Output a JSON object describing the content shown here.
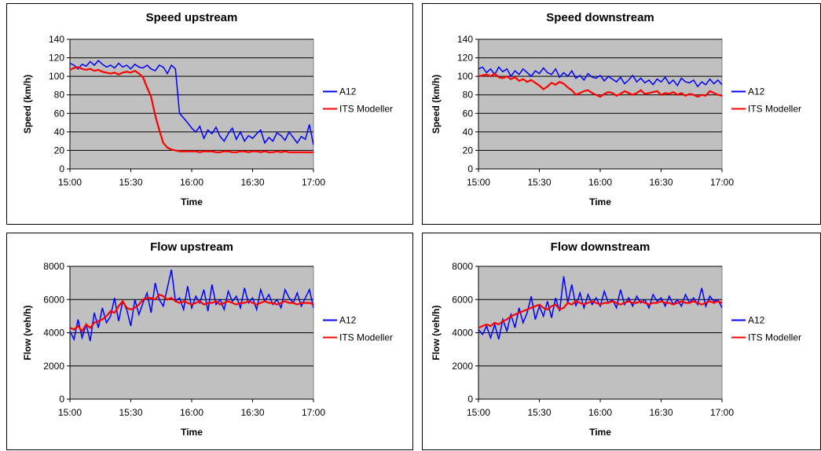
{
  "colors": {
    "plot_bg": "#c0c0c0",
    "a12": "#0000ff",
    "its": "#ff0000",
    "grid": "#000000"
  },
  "chart_data": [
    {
      "type": "line",
      "title": "Speed upstream",
      "xlabel": "Time",
      "ylabel": "Speed (km/h)",
      "x_ticks": [
        "15:00",
        "15:30",
        "16:00",
        "16:30",
        "17:00"
      ],
      "y_ticks": [
        "0",
        "20",
        "40",
        "60",
        "80",
        "100",
        "120",
        "140"
      ],
      "ylim": [
        0,
        140
      ],
      "xlim_minutes": [
        0,
        120
      ],
      "legend": "right",
      "series": [
        {
          "name": "A12",
          "color": "#0000ff",
          "x": [
            0,
            2,
            4,
            6,
            8,
            10,
            12,
            14,
            16,
            18,
            20,
            22,
            24,
            26,
            28,
            30,
            32,
            34,
            36,
            38,
            40,
            42,
            44,
            46,
            48,
            50,
            52,
            54,
            56,
            58,
            60,
            62,
            64,
            66,
            68,
            70,
            72,
            74,
            76,
            78,
            80,
            82,
            84,
            86,
            88,
            90,
            92,
            94,
            96,
            98,
            100,
            102,
            104,
            106,
            108,
            110,
            112,
            114,
            116,
            118,
            120
          ],
          "y": [
            114,
            112,
            108,
            113,
            111,
            116,
            112,
            117,
            113,
            110,
            112,
            109,
            114,
            110,
            112,
            108,
            113,
            110,
            109,
            112,
            108,
            106,
            112,
            110,
            103,
            112,
            108,
            60,
            55,
            50,
            44,
            40,
            46,
            33,
            42,
            38,
            45,
            35,
            30,
            38,
            44,
            32,
            40,
            30,
            36,
            33,
            38,
            42,
            28,
            34,
            30,
            39,
            36,
            31,
            40,
            34,
            28,
            35,
            32,
            48,
            26
          ]
        },
        {
          "name": "ITS Modeller",
          "color": "#ff0000",
          "x": [
            0,
            2,
            4,
            6,
            8,
            10,
            12,
            14,
            16,
            18,
            20,
            22,
            24,
            26,
            28,
            30,
            32,
            34,
            36,
            38,
            40,
            42,
            44,
            46,
            48,
            50,
            52,
            54,
            56,
            58,
            60,
            62,
            64,
            66,
            68,
            70,
            72,
            74,
            76,
            78,
            80,
            82,
            84,
            86,
            88,
            90,
            92,
            94,
            96,
            98,
            100,
            102,
            104,
            106,
            108,
            110,
            112,
            114,
            116,
            118,
            120
          ],
          "y": [
            107,
            109,
            110,
            108,
            107,
            108,
            106,
            107,
            105,
            104,
            103,
            104,
            102,
            104,
            105,
            104,
            106,
            103,
            99,
            88,
            78,
            58,
            42,
            28,
            23,
            21,
            20,
            19,
            19,
            19,
            19,
            19,
            18,
            19,
            19,
            19,
            18,
            18,
            19,
            19,
            18,
            18,
            19,
            19,
            18,
            19,
            19,
            18,
            19,
            18,
            18,
            19,
            18,
            19,
            18,
            18,
            18,
            18,
            18,
            18,
            18
          ]
        }
      ]
    },
    {
      "type": "line",
      "title": "Speed downstream",
      "xlabel": "Time",
      "ylabel": "Speed (km/h)",
      "x_ticks": [
        "15:00",
        "15:30",
        "16:00",
        "16:30",
        "17:00"
      ],
      "y_ticks": [
        "0",
        "20",
        "40",
        "60",
        "80",
        "100",
        "120",
        "140"
      ],
      "ylim": [
        0,
        140
      ],
      "xlim_minutes": [
        0,
        120
      ],
      "legend": "right",
      "series": [
        {
          "name": "A12",
          "color": "#0000ff",
          "x": [
            0,
            2,
            4,
            6,
            8,
            10,
            12,
            14,
            16,
            18,
            20,
            22,
            24,
            26,
            28,
            30,
            32,
            34,
            36,
            38,
            40,
            42,
            44,
            46,
            48,
            50,
            52,
            54,
            56,
            58,
            60,
            62,
            64,
            66,
            68,
            70,
            72,
            74,
            76,
            78,
            80,
            82,
            84,
            86,
            88,
            90,
            92,
            94,
            96,
            98,
            100,
            102,
            104,
            106,
            108,
            110,
            112,
            114,
            116,
            118,
            120
          ],
          "y": [
            108,
            110,
            104,
            108,
            102,
            110,
            105,
            108,
            100,
            106,
            102,
            108,
            104,
            100,
            106,
            103,
            109,
            104,
            102,
            108,
            99,
            104,
            100,
            106,
            98,
            101,
            96,
            103,
            99,
            98,
            101,
            95,
            100,
            97,
            94,
            99,
            92,
            96,
            101,
            94,
            98,
            93,
            96,
            91,
            97,
            94,
            99,
            92,
            96,
            90,
            98,
            94,
            93,
            96,
            89,
            94,
            91,
            97,
            92,
            96,
            91
          ]
        },
        {
          "name": "ITS Modeller",
          "color": "#ff0000",
          "x": [
            0,
            2,
            4,
            6,
            8,
            10,
            12,
            14,
            16,
            18,
            20,
            22,
            24,
            26,
            28,
            30,
            32,
            34,
            36,
            38,
            40,
            42,
            44,
            46,
            48,
            50,
            52,
            54,
            56,
            58,
            60,
            62,
            64,
            66,
            68,
            70,
            72,
            74,
            76,
            78,
            80,
            82,
            84,
            86,
            88,
            90,
            92,
            94,
            96,
            98,
            100,
            102,
            104,
            106,
            108,
            110,
            112,
            114,
            116,
            118,
            120
          ],
          "y": [
            100,
            101,
            102,
            100,
            103,
            99,
            98,
            100,
            97,
            99,
            95,
            97,
            94,
            96,
            93,
            90,
            86,
            89,
            93,
            91,
            94,
            92,
            88,
            85,
            80,
            82,
            84,
            85,
            82,
            80,
            78,
            81,
            83,
            82,
            79,
            81,
            84,
            82,
            80,
            82,
            85,
            81,
            82,
            83,
            84,
            80,
            82,
            81,
            83,
            80,
            82,
            79,
            81,
            80,
            78,
            80,
            79,
            84,
            82,
            80,
            79
          ]
        }
      ]
    },
    {
      "type": "line",
      "title": "Flow upstream",
      "xlabel": "Time",
      "ylabel": "Flow (veh/h)",
      "x_ticks": [
        "15:00",
        "15:30",
        "16:00",
        "16:30",
        "17:00"
      ],
      "y_ticks": [
        "0",
        "2000",
        "4000",
        "6000",
        "8000"
      ],
      "ylim": [
        0,
        8000
      ],
      "xlim_minutes": [
        0,
        120
      ],
      "legend": "right",
      "series": [
        {
          "name": "A12",
          "color": "#0000ff",
          "x": [
            0,
            2,
            4,
            6,
            8,
            10,
            12,
            14,
            16,
            18,
            20,
            22,
            24,
            26,
            28,
            30,
            32,
            34,
            36,
            38,
            40,
            42,
            44,
            46,
            48,
            50,
            52,
            54,
            56,
            58,
            60,
            62,
            64,
            66,
            68,
            70,
            72,
            74,
            76,
            78,
            80,
            82,
            84,
            86,
            88,
            90,
            92,
            94,
            96,
            98,
            100,
            102,
            104,
            106,
            108,
            110,
            112,
            114,
            116,
            118,
            120
          ],
          "y": [
            4100,
            3600,
            4800,
            3700,
            4500,
            3500,
            5200,
            4300,
            5500,
            4600,
            5000,
            6100,
            4700,
            5900,
            5400,
            4400,
            6000,
            5100,
            5800,
            6400,
            5200,
            7000,
            6000,
            5600,
            6700,
            7800,
            5900,
            6100,
            5400,
            6800,
            5500,
            6200,
            5800,
            6600,
            5300,
            6900,
            5700,
            6000,
            5400,
            6500,
            5900,
            6200,
            5500,
            6700,
            5800,
            6100,
            5400,
            6600,
            5900,
            6300,
            5700,
            6000,
            5500,
            6600,
            6100,
            5800,
            6400,
            5600,
            6100,
            6600,
            5500
          ]
        },
        {
          "name": "ITS Modeller",
          "color": "#ff0000",
          "x": [
            0,
            2,
            4,
            6,
            8,
            10,
            12,
            14,
            16,
            18,
            20,
            22,
            24,
            26,
            28,
            30,
            32,
            34,
            36,
            38,
            40,
            42,
            44,
            46,
            48,
            50,
            52,
            54,
            56,
            58,
            60,
            62,
            64,
            66,
            68,
            70,
            72,
            74,
            76,
            78,
            80,
            82,
            84,
            86,
            88,
            90,
            92,
            94,
            96,
            98,
            100,
            102,
            104,
            106,
            108,
            110,
            112,
            114,
            116,
            118,
            120
          ],
          "y": [
            4300,
            4200,
            4400,
            4100,
            4500,
            4300,
            4600,
            4700,
            4800,
            5000,
            5300,
            5200,
            5600,
            5900,
            5500,
            5400,
            5500,
            5700,
            6000,
            6100,
            6100,
            6000,
            6300,
            6200,
            6000,
            6100,
            5900,
            5800,
            5900,
            5800,
            5700,
            5800,
            5900,
            5700,
            5800,
            5800,
            5900,
            5700,
            5800,
            5900,
            5800,
            5700,
            5800,
            5800,
            5900,
            5800,
            5700,
            5800,
            5900,
            5800,
            5800,
            5700,
            5800,
            5900,
            5800,
            5800,
            5700,
            5800,
            5800,
            5800,
            5700
          ]
        }
      ]
    },
    {
      "type": "line",
      "title": "Flow downstream",
      "xlabel": "Time",
      "ylabel": "Flow (veh/h)",
      "x_ticks": [
        "15:00",
        "15:30",
        "16:00",
        "16:30",
        "17:00"
      ],
      "y_ticks": [
        "0",
        "2000",
        "4000",
        "6000",
        "8000"
      ],
      "ylim": [
        0,
        8000
      ],
      "xlim_minutes": [
        0,
        120
      ],
      "legend": "right",
      "series": [
        {
          "name": "A12",
          "color": "#0000ff",
          "x": [
            0,
            2,
            4,
            6,
            8,
            10,
            12,
            14,
            16,
            18,
            20,
            22,
            24,
            26,
            28,
            30,
            32,
            34,
            36,
            38,
            40,
            42,
            44,
            46,
            48,
            50,
            52,
            54,
            56,
            58,
            60,
            62,
            64,
            66,
            68,
            70,
            72,
            74,
            76,
            78,
            80,
            82,
            84,
            86,
            88,
            90,
            92,
            94,
            96,
            98,
            100,
            102,
            104,
            106,
            108,
            110,
            112,
            114,
            116,
            118,
            120
          ],
          "y": [
            4200,
            3900,
            4400,
            3700,
            4500,
            3600,
            4800,
            4100,
            5100,
            4300,
            5500,
            4600,
            5200,
            6200,
            4800,
            5600,
            5000,
            5900,
            4900,
            6100,
            5300,
            7400,
            5800,
            6900,
            5600,
            6400,
            5500,
            6300,
            5700,
            6100,
            5600,
            6500,
            5800,
            6000,
            5500,
            6600,
            5700,
            6100,
            5600,
            6200,
            5800,
            6000,
            5500,
            6300,
            5900,
            6100,
            5600,
            6200,
            5700,
            6000,
            5600,
            6300,
            5800,
            6100,
            5700,
            6700,
            5600,
            6200,
            5900,
            6000,
            5500
          ]
        },
        {
          "name": "ITS Modeller",
          "color": "#ff0000",
          "x": [
            0,
            2,
            4,
            6,
            8,
            10,
            12,
            14,
            16,
            18,
            20,
            22,
            24,
            26,
            28,
            30,
            32,
            34,
            36,
            38,
            40,
            42,
            44,
            46,
            48,
            50,
            52,
            54,
            56,
            58,
            60,
            62,
            64,
            66,
            68,
            70,
            72,
            74,
            76,
            78,
            80,
            82,
            84,
            86,
            88,
            90,
            92,
            94,
            96,
            98,
            100,
            102,
            104,
            106,
            108,
            110,
            112,
            114,
            116,
            118,
            120
          ],
          "y": [
            4300,
            4400,
            4500,
            4400,
            4600,
            4500,
            4700,
            4800,
            5000,
            5100,
            5200,
            5300,
            5400,
            5500,
            5600,
            5700,
            5500,
            5400,
            5600,
            5700,
            5400,
            5500,
            5800,
            5700,
            5900,
            5800,
            5700,
            5800,
            5900,
            5800,
            5700,
            5800,
            5800,
            5900,
            5800,
            5700,
            5800,
            5900,
            5800,
            5800,
            5900,
            5800,
            5700,
            5800,
            5800,
            5900,
            5800,
            5800,
            5700,
            5800,
            5900,
            5800,
            5800,
            5900,
            5800,
            5700,
            5800,
            5900,
            5800,
            5900,
            5800
          ]
        }
      ]
    }
  ]
}
